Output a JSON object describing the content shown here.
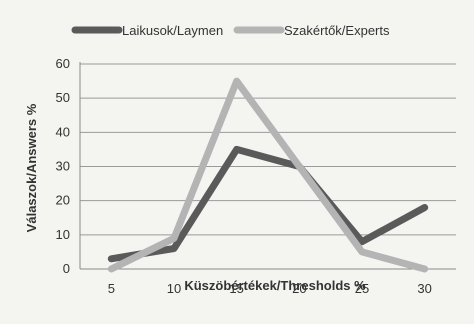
{
  "chart_data": {
    "type": "line",
    "title": "",
    "xlabel": "Küszöbértékek/Thresholds %",
    "ylabel": "Válaszok/Answers %",
    "categories": [
      "5",
      "10",
      "15",
      "20",
      "25",
      "30"
    ],
    "x": [
      5,
      10,
      15,
      20,
      25,
      30
    ],
    "ylim": [
      0,
      60
    ],
    "yticks": [
      "0",
      "10",
      "20",
      "30",
      "40",
      "50",
      "60"
    ],
    "grid": true,
    "legend_position": "top",
    "series": [
      {
        "name": "Laikusok/Laymen",
        "values": [
          3,
          6,
          35,
          30,
          8,
          18
        ],
        "color": "#5a5a5a"
      },
      {
        "name": "Szakértők/Experts",
        "values": [
          0,
          9,
          55,
          30,
          5,
          0
        ],
        "color": "#b4b4b4"
      }
    ]
  }
}
